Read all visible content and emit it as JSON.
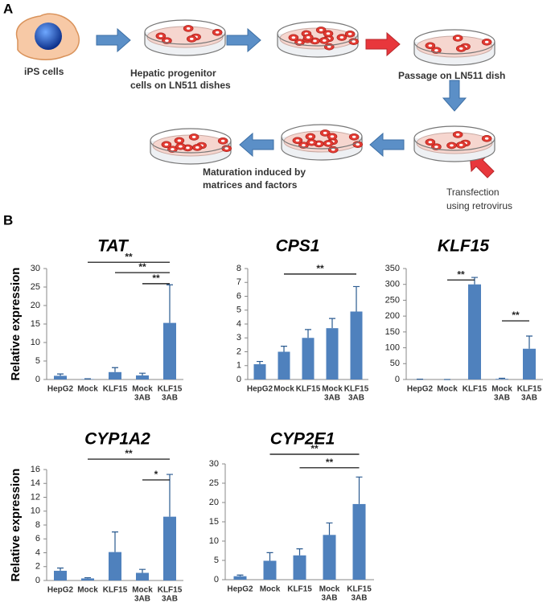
{
  "panel_a": {
    "label": "A",
    "ips": "iPS cells",
    "hepatic": [
      "Hepatic progenitor",
      "cells on LN511 dishes"
    ],
    "passage": "Passage on LN511 dish",
    "transfection": [
      "Transfection",
      "using retrovirus"
    ],
    "maturation": [
      "Maturation induced by",
      "matrices and factors"
    ]
  },
  "panel_b": {
    "label": "B"
  },
  "chart_data": [
    {
      "type": "bar",
      "title": "TAT",
      "y_label": "Relative expression",
      "color": "#4f81bd",
      "categories": [
        [
          "HepG2"
        ],
        [
          "Mock"
        ],
        [
          "KLF15"
        ],
        [
          "Mock",
          "3AB"
        ],
        [
          "KLF15",
          "3AB"
        ]
      ],
      "values": [
        1.0,
        0.1,
        2.0,
        1.1,
        15.3
      ],
      "errors": [
        0.5,
        0.1,
        1.2,
        0.6,
        10.3
      ],
      "ylim": [
        0,
        30
      ],
      "yticks": [
        0,
        5,
        10,
        15,
        20,
        25,
        30
      ],
      "brackets": [
        {
          "between": [
            1,
            4
          ],
          "y": 31.7,
          "label": "**"
        },
        {
          "between": [
            2,
            4
          ],
          "y": 28.9,
          "label": "**"
        },
        {
          "between": [
            3,
            4
          ],
          "y": 25.9,
          "label": "**"
        }
      ]
    },
    {
      "type": "bar",
      "title": "CPS1",
      "color": "#4f81bd",
      "categories": [
        [
          "HepG2"
        ],
        [
          "Mock"
        ],
        [
          "KLF15"
        ],
        [
          "Mock",
          "3AB"
        ],
        [
          "KLF15",
          "3AB"
        ]
      ],
      "values": [
        1.1,
        2.0,
        3.0,
        3.7,
        4.9
      ],
      "errors": [
        0.2,
        0.4,
        0.6,
        0.7,
        1.8
      ],
      "ylim": [
        0,
        8
      ],
      "yticks": [
        0,
        1,
        2,
        3,
        4,
        5,
        6,
        7,
        8
      ],
      "brackets": [
        {
          "between": [
            1,
            4
          ],
          "y": 7.6,
          "label": "**"
        }
      ]
    },
    {
      "type": "bar",
      "title": "KLF15",
      "color": "#4f81bd",
      "categories": [
        [
          "HepG2"
        ],
        [
          "Mock"
        ],
        [
          "KLF15"
        ],
        [
          "Mock",
          "3AB"
        ],
        [
          "KLF15",
          "3AB"
        ]
      ],
      "values": [
        0.5,
        0,
        300,
        2,
        97
      ],
      "errors": [
        0.5,
        0,
        22,
        2,
        40
      ],
      "ylim": [
        0,
        350
      ],
      "yticks": [
        0,
        50,
        100,
        150,
        200,
        250,
        300,
        350
      ],
      "brackets": [
        {
          "between": [
            1,
            2
          ],
          "y": 314,
          "label": "**"
        },
        {
          "between": [
            3,
            4
          ],
          "y": 185,
          "label": "**"
        }
      ]
    },
    {
      "type": "bar",
      "title": "CYP1A2",
      "y_label": "Relative expression",
      "color": "#4f81bd",
      "categories": [
        [
          "HepG2"
        ],
        [
          "Mock"
        ],
        [
          "KLF15"
        ],
        [
          "Mock",
          "3AB"
        ],
        [
          "KLF15",
          "3AB"
        ]
      ],
      "values": [
        1.4,
        0.3,
        4.1,
        1.1,
        9.2
      ],
      "errors": [
        0.4,
        0.1,
        2.9,
        0.5,
        6.1
      ],
      "ylim": [
        0,
        16
      ],
      "yticks": [
        0,
        2,
        4,
        6,
        8,
        10,
        12,
        14,
        16
      ],
      "brackets": [
        {
          "between": [
            1,
            4
          ],
          "y": 17.5,
          "label": "**"
        },
        {
          "between": [
            3,
            4
          ],
          "y": 14.5,
          "label": "*"
        }
      ]
    },
    {
      "type": "bar",
      "title": "CYP2E1",
      "color": "#4f81bd",
      "categories": [
        [
          "HepG2"
        ],
        [
          "Mock"
        ],
        [
          "KLF15"
        ],
        [
          "Mock",
          "3AB"
        ],
        [
          "KLF15",
          "3AB"
        ]
      ],
      "values": [
        0.9,
        4.9,
        6.3,
        11.6,
        19.6
      ],
      "errors": [
        0.3,
        2.1,
        1.7,
        3.1,
        7.0
      ],
      "ylim": [
        0,
        30
      ],
      "yticks": [
        0,
        5,
        10,
        15,
        20,
        25,
        30
      ],
      "brackets": [
        {
          "between": [
            1,
            4
          ],
          "y": 32.5,
          "label": "**"
        },
        {
          "between": [
            2,
            4
          ],
          "y": 29,
          "label": "**"
        }
      ]
    }
  ]
}
